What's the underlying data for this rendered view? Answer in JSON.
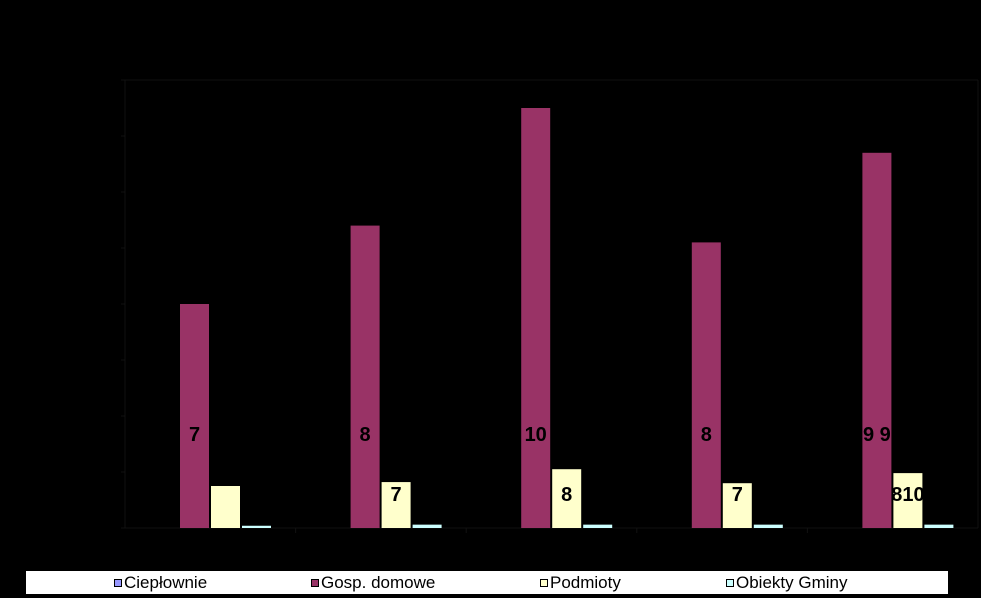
{
  "chart_data": {
    "type": "bar",
    "categories": [
      "",
      "",
      "",
      "",
      ""
    ],
    "series": [
      {
        "name": "Ciepłownie",
        "color": "#9999FF",
        "values": [
          0,
          0,
          0,
          0,
          0
        ],
        "labels": [
          "",
          "",
          "",
          "",
          ""
        ]
      },
      {
        "name": "Gosp. domowe",
        "color": "#993366",
        "values": [
          40,
          54,
          75,
          51,
          67
        ],
        "labels": [
          "7",
          "8",
          "10",
          "8",
          "9 9"
        ]
      },
      {
        "name": "Podmioty",
        "color": "#FFFFCC",
        "values": [
          7.5,
          8.2,
          10.5,
          8.0,
          9.8
        ],
        "labels": [
          "",
          "7",
          "8",
          "7",
          "810"
        ]
      },
      {
        "name": "Obiekty Gminy",
        "color": "#CCFFFF",
        "values": [
          0.4,
          0.6,
          0.6,
          0.6,
          0.6
        ],
        "labels": [
          "",
          "",
          "",
          "",
          ""
        ]
      }
    ],
    "ylim": [
      0,
      80
    ],
    "grid": false,
    "legend_position": "bottom"
  },
  "legend": {
    "items": [
      {
        "label": "Ciepłownie",
        "color": "#9999FF"
      },
      {
        "label": "Gosp. domowe",
        "color": "#993366"
      },
      {
        "label": "Podmioty",
        "color": "#FFFFCC"
      },
      {
        "label": "Obiekty Gminy",
        "color": "#CCFFFF"
      }
    ]
  }
}
